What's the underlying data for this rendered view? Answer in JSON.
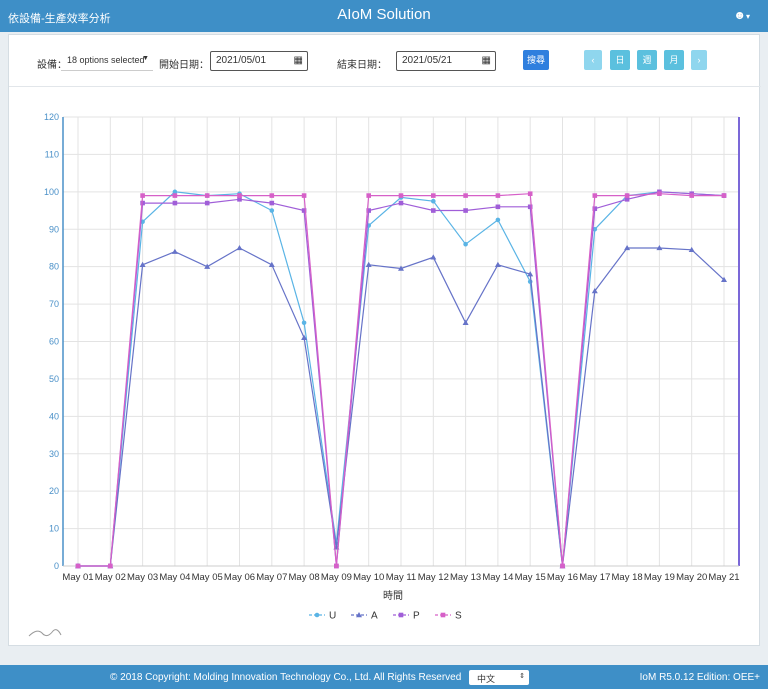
{
  "header": {
    "breadcrumb": "依設備-生產效率分析",
    "title": "AIoM Solution",
    "user_icon": "user-icon"
  },
  "filters": {
    "device_label": "設備：",
    "device_value": "18 options selected",
    "start_label": "開始日期：",
    "start_value": "2021/05/01",
    "end_label": "結束日期：",
    "end_value": "2021/05/21",
    "search_label": "搜尋",
    "prev_label": "‹",
    "day_label": "日",
    "week_label": "週",
    "month_label": "月",
    "next_label": "›"
  },
  "chart_data": {
    "type": "line",
    "xlabel": "時間",
    "ylim": [
      0,
      120
    ],
    "yticks": [
      0,
      10,
      20,
      30,
      40,
      50,
      60,
      70,
      80,
      90,
      100,
      110,
      120
    ],
    "grid": true,
    "legend_position": "bottom",
    "categories": [
      "May 01",
      "May 02",
      "May 03",
      "May 04",
      "May 05",
      "May 06",
      "May 07",
      "May 08",
      "May 09",
      "May 10",
      "May 11",
      "May 12",
      "May 13",
      "May 14",
      "May 15",
      "May 16",
      "May 17",
      "May 18",
      "May 19",
      "May 20",
      "May 21"
    ],
    "series": [
      {
        "name": "U",
        "color": "#5ab4e5",
        "marker": "circle",
        "values": [
          0,
          0,
          92,
          100,
          99,
          99.5,
          95,
          65,
          6,
          91,
          98.5,
          97.5,
          86,
          92.5,
          76,
          0,
          90,
          99,
          100,
          99.5,
          99
        ]
      },
      {
        "name": "A",
        "color": "#6673c8",
        "marker": "triangle",
        "values": [
          0,
          0,
          80.5,
          84,
          80,
          85,
          80.5,
          61,
          5,
          80.5,
          79.5,
          82.5,
          65,
          80.5,
          78,
          0,
          73.5,
          85,
          85,
          84.5,
          76.5
        ]
      },
      {
        "name": "P",
        "color": "#a05ed8",
        "marker": "square",
        "values": [
          0,
          0,
          97,
          97,
          97,
          98,
          97,
          95,
          0,
          95,
          97,
          95,
          95,
          96,
          96,
          0,
          95.5,
          98,
          100,
          99.5,
          99
        ]
      },
      {
        "name": "S",
        "color": "#d660c8",
        "marker": "square",
        "values": [
          0,
          0,
          99,
          99,
          99,
          99,
          99,
          99,
          0,
          99,
          99,
          99,
          99,
          99,
          99.5,
          0,
          99,
          99,
          99.5,
          99,
          99
        ]
      }
    ]
  },
  "footer": {
    "copyright": "© 2018 Copyright: Molding Innovation Technology Co., Ltd. All Rights Reserved",
    "language": "中文",
    "version": "IoM R5.0.12 Edition: OEE+"
  }
}
